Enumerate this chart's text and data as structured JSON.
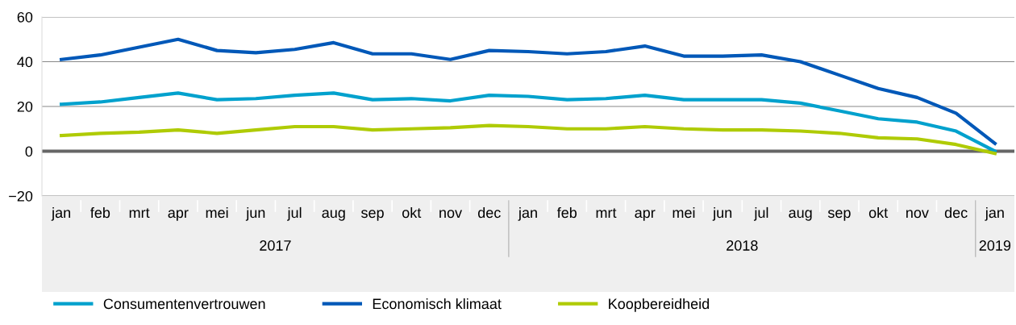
{
  "chart_data": {
    "type": "line",
    "categories": [
      "jan",
      "feb",
      "mrt",
      "apr",
      "mei",
      "jun",
      "jul",
      "aug",
      "sep",
      "okt",
      "nov",
      "dec",
      "jan",
      "feb",
      "mrt",
      "apr",
      "mei",
      "jun",
      "jul",
      "aug",
      "sep",
      "okt",
      "nov",
      "dec",
      "jan"
    ],
    "series": [
      {
        "name": "Consumentenvertrouwen",
        "color": "#00a1cd",
        "values": [
          21,
          22,
          24,
          26,
          23,
          23.5,
          25,
          26,
          23,
          23.5,
          22.5,
          25,
          24.5,
          23,
          23.5,
          25,
          23,
          23,
          23,
          21.5,
          18,
          14.5,
          13,
          9,
          0
        ]
      },
      {
        "name": "Economisch klimaat",
        "color": "#0058b8",
        "values": [
          41,
          43,
          46.5,
          50,
          45,
          44,
          45.5,
          48.5,
          43.5,
          43.5,
          41,
          45,
          44.5,
          43.5,
          44.5,
          47,
          42.5,
          42.5,
          43,
          40,
          34,
          28,
          24,
          17,
          3.5
        ]
      },
      {
        "name": "Koopbereidheid",
        "color": "#afcb05",
        "values": [
          7,
          8,
          8.5,
          9.5,
          8,
          9.5,
          11,
          11,
          9.5,
          10,
          10.5,
          11.5,
          11,
          10,
          10,
          11,
          10,
          9.5,
          9.5,
          9,
          8,
          6,
          5.5,
          3,
          -1
        ]
      }
    ],
    "annotations": [
      "2017",
      "2018",
      "2019"
    ],
    "ylim": [
      -20,
      60
    ],
    "yticks": [
      -20,
      0,
      20,
      40,
      60
    ],
    "ref_lines": [
      {
        "axis": "y",
        "value": 0,
        "color": "#666666"
      }
    ],
    "grid": "y",
    "legend": "bottom",
    "marker": "none",
    "line_style": "solid"
  }
}
